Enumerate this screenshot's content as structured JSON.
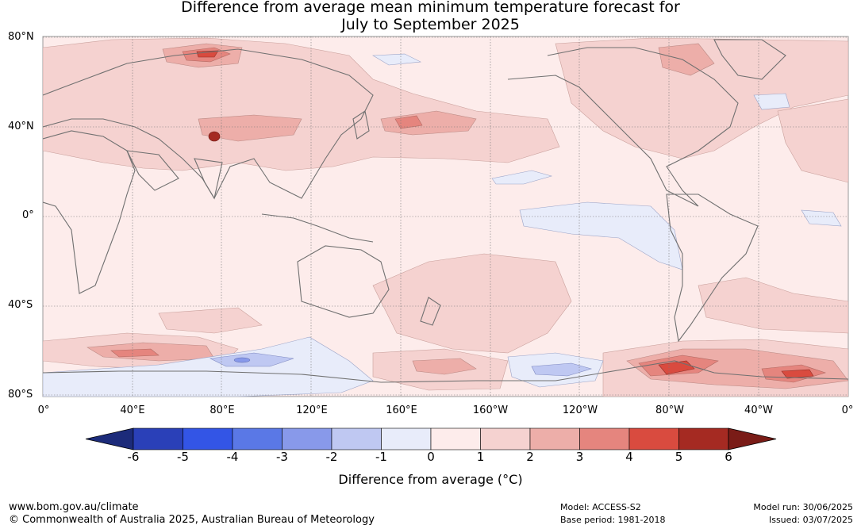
{
  "title_line1": "Difference from average mean minimum temperature forecast for",
  "title_line2": "July to September 2025",
  "map": {
    "lat_labels": [
      "80°N",
      "40°N",
      "0°",
      "40°S",
      "80°S"
    ],
    "lon_labels": [
      "0°",
      "40°E",
      "80°E",
      "120°E",
      "160°E",
      "160°W",
      "120°W",
      "80°W",
      "40°W",
      "0°"
    ],
    "land_outline_color": "#707070"
  },
  "colorbar": {
    "label": "Difference from average (°C)",
    "ticks": [
      "-6",
      "-5",
      "-4",
      "-3",
      "-2",
      "-1",
      "0",
      "1",
      "2",
      "3",
      "4",
      "5",
      "6"
    ],
    "colors": [
      "#1c2b7a",
      "#2a40b8",
      "#3355e6",
      "#5a78e6",
      "#8899ea",
      "#bfc8f2",
      "#e8ecfa",
      "#fdeceb",
      "#f5d2d0",
      "#edaea9",
      "#e5857e",
      "#d94b3f",
      "#a52a22",
      "#7a1c17"
    ]
  },
  "footer": {
    "left_line1": "www.bom.gov.au/climate",
    "left_line2": "© Commonwealth of Australia 2025, Australian Bureau of Meteorology",
    "model": "Model: ACCESS-S2",
    "base_period": "Base period: 1981-2018",
    "model_run": "Model run: 30/06/2025",
    "issued": "Issued: 03/07/2025"
  }
}
